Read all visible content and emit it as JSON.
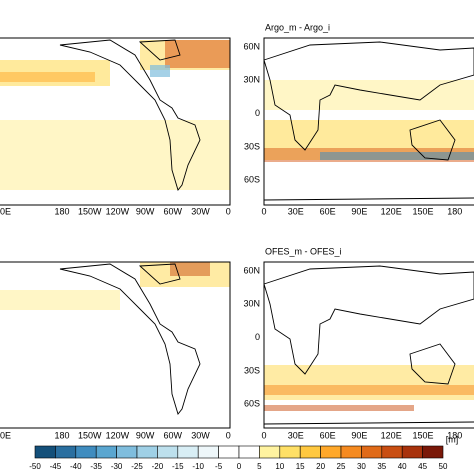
{
  "rows": [
    {
      "left_lon_labels": [
        "0E",
        "180",
        "150W",
        "120W",
        "90W",
        "60W",
        "30W",
        "0"
      ],
      "right_title": "Argo_m - Argo_i",
      "lat_labels": [
        "60N",
        "30N",
        "0",
        "30S",
        "60S"
      ],
      "right_lon_labels": [
        "0",
        "30E",
        "60E",
        "90E",
        "120E",
        "150E",
        "180"
      ]
    },
    {
      "left_lon_labels": [
        "0E",
        "180",
        "150W",
        "120W",
        "90W",
        "60W",
        "30W",
        "0"
      ],
      "right_title": "OFES_m - OFES_i",
      "lat_labels": [
        "60N",
        "30N",
        "0",
        "30S",
        "60S"
      ],
      "right_lon_labels": [
        "0",
        "30E",
        "60E",
        "90E",
        "120E",
        "150E",
        "180"
      ]
    }
  ],
  "colorbar": {
    "labels": [
      -50,
      -45,
      -40,
      -35,
      -30,
      -25,
      -20,
      -15,
      -10,
      -5,
      0,
      5,
      10,
      15,
      20,
      25,
      30,
      35,
      40,
      45,
      50
    ],
    "colors": [
      "#14507a",
      "#2a6fa0",
      "#3f8cbf",
      "#5aa6d0",
      "#7fbddd",
      "#9fd0e6",
      "#bde0ed",
      "#d8eef5",
      "#eef7fa",
      "#ffffff",
      "#ffffff",
      "#fff3a0",
      "#ffe066",
      "#ffc840",
      "#ffa82a",
      "#f58a20",
      "#e06a18",
      "#c94e12",
      "#a8320c",
      "#7a1808"
    ],
    "unit": "[m]"
  }
}
